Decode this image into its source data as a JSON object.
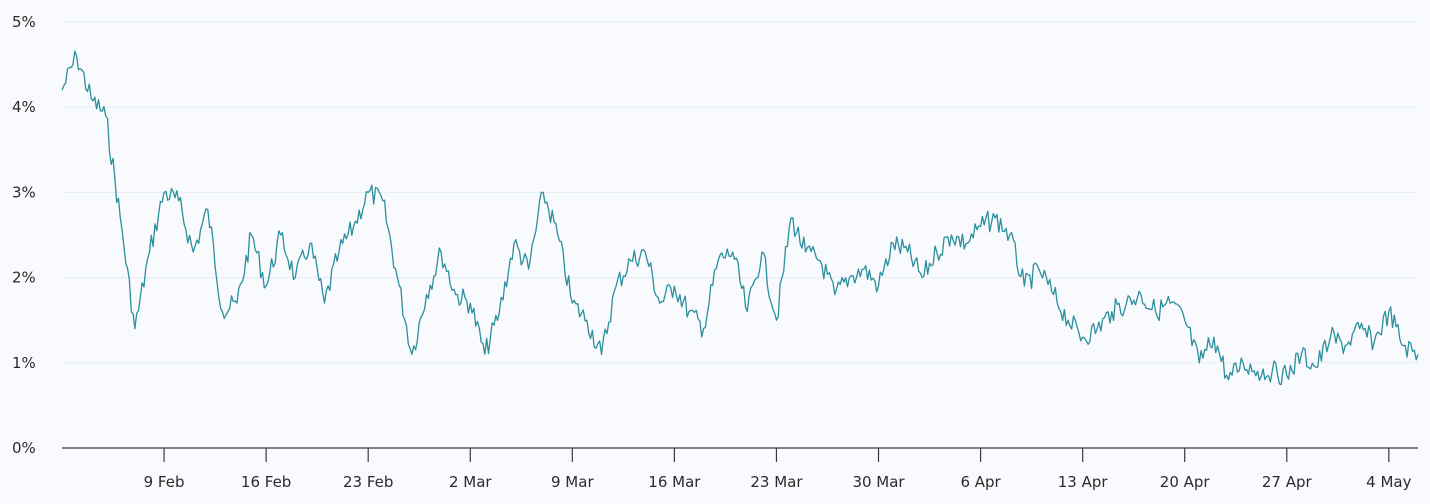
{
  "chart_data": {
    "type": "line",
    "title": "",
    "xlabel": "",
    "ylabel": "",
    "ylim": [
      0,
      5
    ],
    "y_ticks": [
      {
        "value": 0,
        "label": "0%"
      },
      {
        "value": 1,
        "label": "1%"
      },
      {
        "value": 2,
        "label": "2%"
      },
      {
        "value": 3,
        "label": "3%"
      },
      {
        "value": 4,
        "label": "4%"
      },
      {
        "value": 5,
        "label": "5%"
      }
    ],
    "x_range": [
      "2025-02-02",
      "2025-05-06"
    ],
    "x_ticks": [
      {
        "date": "2025-02-09",
        "label": "9 Feb"
      },
      {
        "date": "2025-02-16",
        "label": "16 Feb"
      },
      {
        "date": "2025-02-23",
        "label": "23 Feb"
      },
      {
        "date": "2025-03-02",
        "label": "2 Mar"
      },
      {
        "date": "2025-03-09",
        "label": "9 Mar"
      },
      {
        "date": "2025-03-16",
        "label": "16 Mar"
      },
      {
        "date": "2025-03-23",
        "label": "23 Mar"
      },
      {
        "date": "2025-03-30",
        "label": "30 Mar"
      },
      {
        "date": "2025-04-06",
        "label": "6 Apr"
      },
      {
        "date": "2025-04-13",
        "label": "13 Apr"
      },
      {
        "date": "2025-04-20",
        "label": "20 Apr"
      },
      {
        "date": "2025-04-27",
        "label": "27 Apr"
      },
      {
        "date": "2025-05-04",
        "label": "4 May"
      }
    ],
    "grid": true,
    "legend": "none",
    "series": [
      {
        "color": "#2b8f9c",
        "points": [
          [
            "2025-02-02",
            4.2
          ],
          [
            "2025-02-03",
            4.6
          ],
          [
            "2025-02-04",
            4.1
          ],
          [
            "2025-02-05",
            3.9
          ],
          [
            "2025-02-06",
            2.7
          ],
          [
            "2025-02-07",
            1.4
          ],
          [
            "2025-02-08",
            2.3
          ],
          [
            "2025-02-09",
            3.0
          ],
          [
            "2025-02-10",
            2.9
          ],
          [
            "2025-02-11",
            2.3
          ],
          [
            "2025-02-12",
            2.8
          ],
          [
            "2025-02-13",
            1.6
          ],
          [
            "2025-02-14",
            1.7
          ],
          [
            "2025-02-15",
            2.5
          ],
          [
            "2025-02-16",
            1.9
          ],
          [
            "2025-02-17",
            2.5
          ],
          [
            "2025-02-18",
            2.0
          ],
          [
            "2025-02-19",
            2.4
          ],
          [
            "2025-02-20",
            1.7
          ],
          [
            "2025-02-21",
            2.3
          ],
          [
            "2025-02-22",
            2.6
          ],
          [
            "2025-02-23",
            3.0
          ],
          [
            "2025-02-24",
            2.9
          ],
          [
            "2025-02-25",
            2.0
          ],
          [
            "2025-02-26",
            1.1
          ],
          [
            "2025-02-27",
            1.8
          ],
          [
            "2025-02-28",
            2.3
          ],
          [
            "2025-03-01",
            1.8
          ],
          [
            "2025-03-02",
            1.7
          ],
          [
            "2025-03-03",
            1.1
          ],
          [
            "2025-03-04",
            1.6
          ],
          [
            "2025-03-05",
            2.4
          ],
          [
            "2025-03-06",
            2.1
          ],
          [
            "2025-03-07",
            3.0
          ],
          [
            "2025-03-08",
            2.5
          ],
          [
            "2025-03-09",
            1.7
          ],
          [
            "2025-03-10",
            1.5
          ],
          [
            "2025-03-11",
            1.1
          ],
          [
            "2025-03-12",
            1.9
          ],
          [
            "2025-03-13",
            2.2
          ],
          [
            "2025-03-14",
            2.3
          ],
          [
            "2025-03-15",
            1.7
          ],
          [
            "2025-03-16",
            1.9
          ],
          [
            "2025-03-17",
            1.6
          ],
          [
            "2025-03-18",
            1.4
          ],
          [
            "2025-03-19",
            2.2
          ],
          [
            "2025-03-20",
            2.3
          ],
          [
            "2025-03-21",
            1.6
          ],
          [
            "2025-03-22",
            2.3
          ],
          [
            "2025-03-23",
            1.5
          ],
          [
            "2025-03-24",
            2.7
          ],
          [
            "2025-03-25",
            2.3
          ],
          [
            "2025-03-26",
            2.2
          ],
          [
            "2025-03-27",
            1.8
          ],
          [
            "2025-03-28",
            2.0
          ],
          [
            "2025-03-29",
            2.1
          ],
          [
            "2025-03-30",
            1.9
          ],
          [
            "2025-03-31",
            2.4
          ],
          [
            "2025-04-01",
            2.3
          ],
          [
            "2025-04-02",
            2.0
          ],
          [
            "2025-04-03",
            2.3
          ],
          [
            "2025-04-04",
            2.5
          ],
          [
            "2025-04-05",
            2.4
          ],
          [
            "2025-04-06",
            2.6
          ],
          [
            "2025-04-07",
            2.7
          ],
          [
            "2025-04-08",
            2.5
          ],
          [
            "2025-04-09",
            1.9
          ],
          [
            "2025-04-10",
            2.1
          ],
          [
            "2025-04-11",
            1.8
          ],
          [
            "2025-04-12",
            1.5
          ],
          [
            "2025-04-13",
            1.3
          ],
          [
            "2025-04-14",
            1.4
          ],
          [
            "2025-04-15",
            1.6
          ],
          [
            "2025-04-16",
            1.7
          ],
          [
            "2025-04-17",
            1.8
          ],
          [
            "2025-04-18",
            1.6
          ],
          [
            "2025-04-19",
            1.7
          ],
          [
            "2025-04-20",
            1.5
          ],
          [
            "2025-04-21",
            1.0
          ],
          [
            "2025-04-22",
            1.3
          ],
          [
            "2025-04-23",
            0.8
          ],
          [
            "2025-04-24",
            1.0
          ],
          [
            "2025-04-25",
            0.9
          ],
          [
            "2025-04-26",
            0.9
          ],
          [
            "2025-04-27",
            0.85
          ],
          [
            "2025-04-28",
            1.1
          ],
          [
            "2025-04-29",
            0.95
          ],
          [
            "2025-04-30",
            1.3
          ],
          [
            "2025-05-01",
            1.2
          ],
          [
            "2025-05-02",
            1.4
          ],
          [
            "2025-05-03",
            1.25
          ],
          [
            "2025-05-04",
            1.6
          ],
          [
            "2025-05-05",
            1.2
          ],
          [
            "2025-05-06",
            1.1
          ]
        ]
      }
    ]
  }
}
